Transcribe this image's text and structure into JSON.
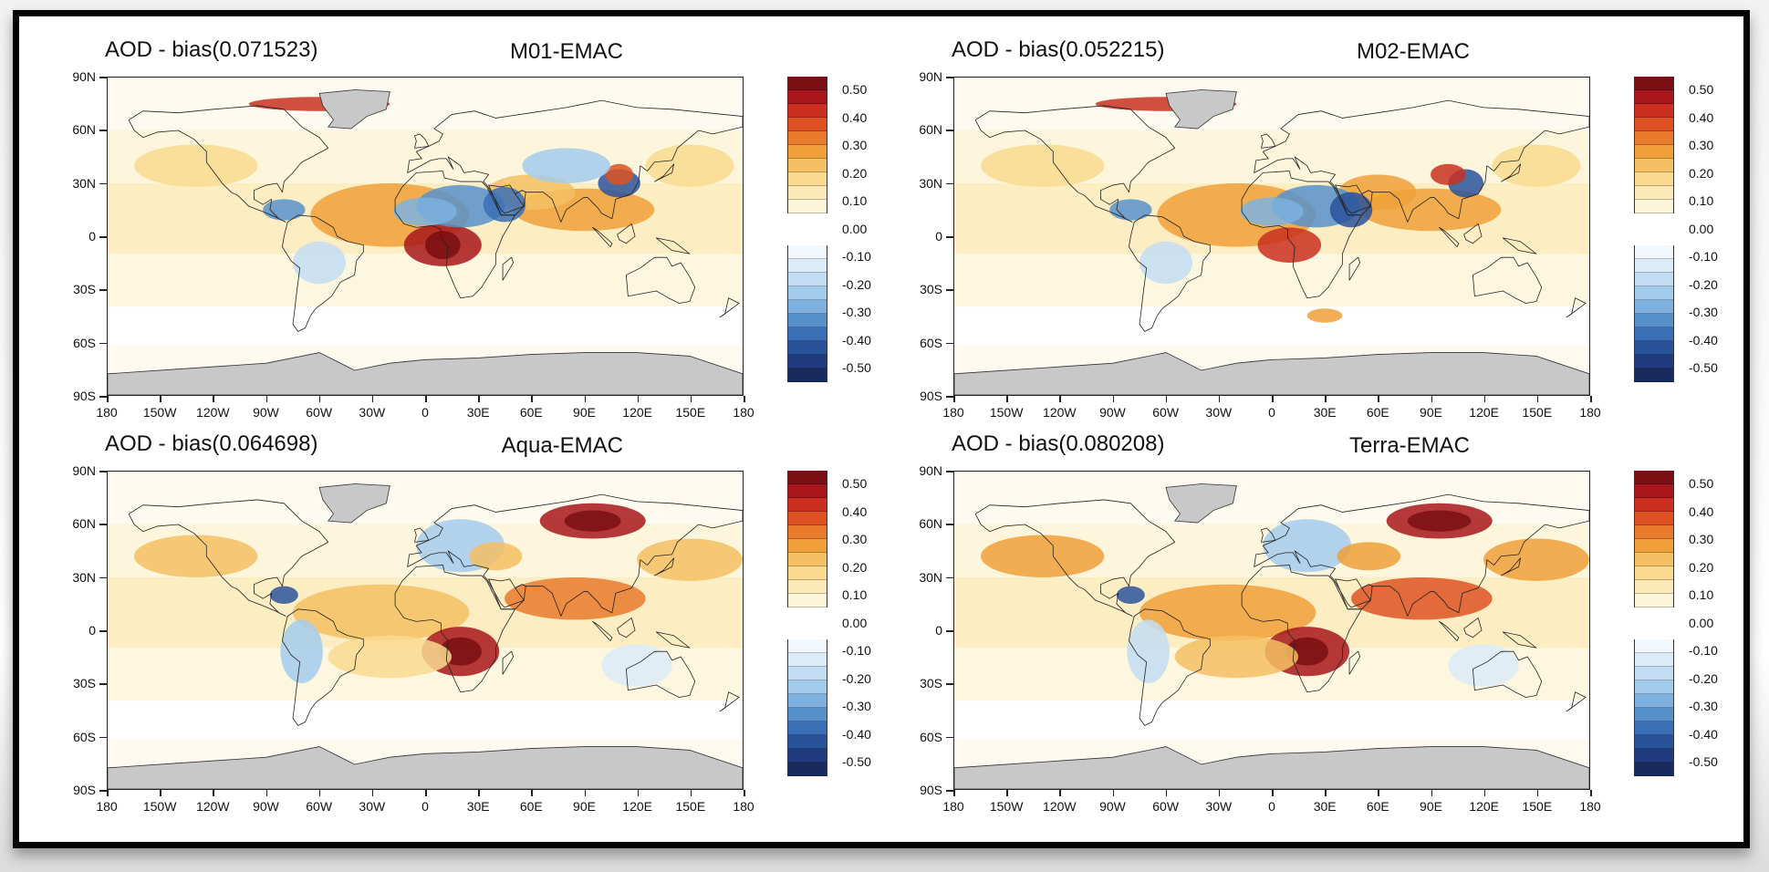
{
  "panels": [
    {
      "title": "AOD - bias(0.071523)",
      "model": "M01-EMAC",
      "pattern": "m01"
    },
    {
      "title": "AOD - bias(0.052215)",
      "model": "M02-EMAC",
      "pattern": "m02"
    },
    {
      "title": "AOD - bias(0.064698)",
      "model": "Aqua-EMAC",
      "pattern": "aqua"
    },
    {
      "title": "AOD - bias(0.080208)",
      "model": "Terra-EMAC",
      "pattern": "terra"
    }
  ],
  "lat_labels": [
    "90N",
    "60N",
    "30N",
    "0",
    "30S",
    "60S",
    "90S"
  ],
  "lon_labels": [
    "180",
    "150W",
    "120W",
    "90W",
    "60W",
    "30W",
    "0",
    "30E",
    "60E",
    "90E",
    "120E",
    "150E",
    "180"
  ],
  "colorbar": {
    "labels": [
      "0.50",
      "0.40",
      "0.30",
      "0.20",
      "0.10",
      "0.00",
      "-0.10",
      "-0.20",
      "-0.30",
      "-0.40",
      "-0.50"
    ],
    "positive_colors": [
      "#7a0e12",
      "#a8161b",
      "#c9301f",
      "#dd5223",
      "#e9792b",
      "#f0a03a",
      "#f5c063",
      "#f9da8f",
      "#fbeab7",
      "#fdf5d9"
    ],
    "negative_colors": [
      "#f3f8fd",
      "#dcebf8",
      "#c2ddf3",
      "#a3cbec",
      "#7eb1df",
      "#5890cc",
      "#3a6fb6",
      "#2a529b",
      "#1f3b7d",
      "#182a5e"
    ],
    "land_mask_color": "#c8c8c8"
  }
}
